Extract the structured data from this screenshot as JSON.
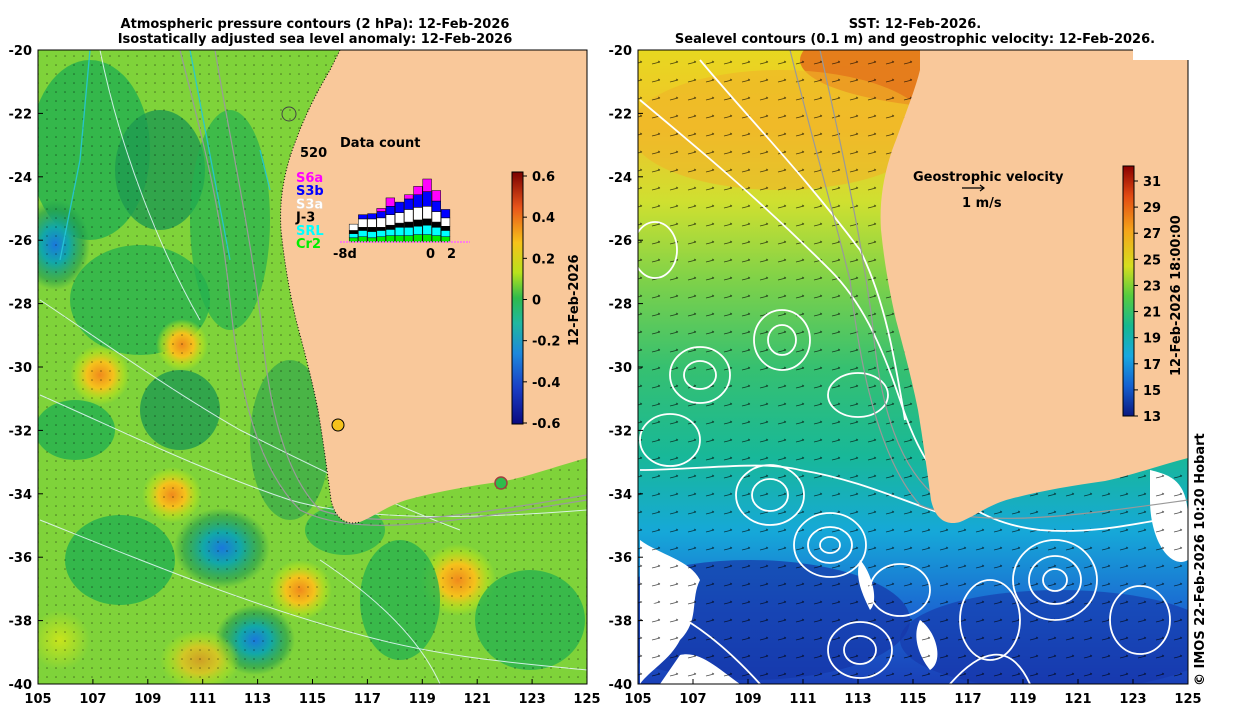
{
  "left_panel": {
    "title_line1": "Atmospheric pressure contours (2 hPa): 12-Feb-2026",
    "title_line2": "Isostatically adjusted sea level anomaly: 12-Feb-2026",
    "x_ticks": [
      "105",
      "107",
      "109",
      "111",
      "113",
      "115",
      "117",
      "119",
      "121",
      "123",
      "125"
    ],
    "y_ticks": [
      "-20",
      "-22",
      "-24",
      "-26",
      "-28",
      "-30",
      "-32",
      "-34",
      "-36",
      "-38",
      "-40"
    ],
    "colorbar": {
      "ticks": [
        "0.6",
        "0.4",
        "0.2",
        "0",
        "-0.2",
        "-0.4",
        "-0.6"
      ],
      "label": "12-Feb-2026"
    },
    "inset": {
      "title": "Data count",
      "max_label": "520",
      "x_left": "-8d",
      "x_zero": "0",
      "x_right": "2",
      "legend": [
        {
          "name": "S6a",
          "color": "#ff00ff"
        },
        {
          "name": "S3b",
          "color": "#0000ff"
        },
        {
          "name": "S3a",
          "color": "#ffffff"
        },
        {
          "name": "J-3",
          "color": "#000000"
        },
        {
          "name": "SRL",
          "color": "#00ffff"
        },
        {
          "name": "Cr2",
          "color": "#00ee00"
        }
      ]
    }
  },
  "right_panel": {
    "title_line1": "SST: 12-Feb-2026.",
    "title_line2": "Sealevel contours (0.1 m) and geostrophic velocity: 12-Feb-2026.",
    "x_ticks": [
      "105",
      "107",
      "109",
      "111",
      "113",
      "115",
      "117",
      "119",
      "121",
      "123",
      "125"
    ],
    "y_ticks": [
      "-20",
      "-22",
      "-24",
      "-26",
      "-28",
      "-30",
      "-32",
      "-34",
      "-36",
      "-38",
      "-40"
    ],
    "colorbar": {
      "ticks": [
        "31",
        "29",
        "27",
        "25",
        "23",
        "21",
        "19",
        "17",
        "15",
        "13"
      ],
      "label": "12-Feb-2026 18:00:00"
    },
    "velocity_key_title": "Geostrophic velocity",
    "velocity_key_label": "1 m/s"
  },
  "credit": "© IMOS 22-Feb-2026 10:20 Hobart",
  "colors": {
    "land": "#f9c89a",
    "anomaly_zero": "#2fbb4c",
    "anomaly_high": "#f5b319",
    "anomaly_low": "#1f8ad6",
    "sst_warm": "#f0a020",
    "sst_cold": "#1340b8"
  }
}
